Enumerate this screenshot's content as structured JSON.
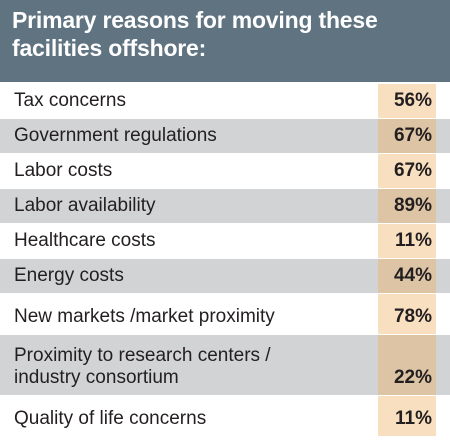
{
  "chart_data": {
    "type": "table",
    "title": "Primary reasons for moving these facilities offshore:",
    "rows": [
      {
        "label": "Tax concerns",
        "value": "56%"
      },
      {
        "label": "Government regulations",
        "value": "67%"
      },
      {
        "label": "Labor costs",
        "value": "67%"
      },
      {
        "label": "Labor availability",
        "value": "89%"
      },
      {
        "label": "Healthcare costs",
        "value": "11%"
      },
      {
        "label": "Energy costs",
        "value": "44%"
      },
      {
        "label": "New markets /market proximity",
        "value": "78%"
      },
      {
        "label": "Proximity to research centers /\nindustry consortium",
        "value": "22%"
      },
      {
        "label": "Quality of life concerns",
        "value": "11%"
      }
    ]
  },
  "colors": {
    "header_bg": "#5f7381",
    "header_text": "#ffffff",
    "row_alt_bg": "#d1d3d4",
    "value_cell_bg": "#f7dfc0",
    "value_cell_alt_bg": "#dcc4a4"
  }
}
